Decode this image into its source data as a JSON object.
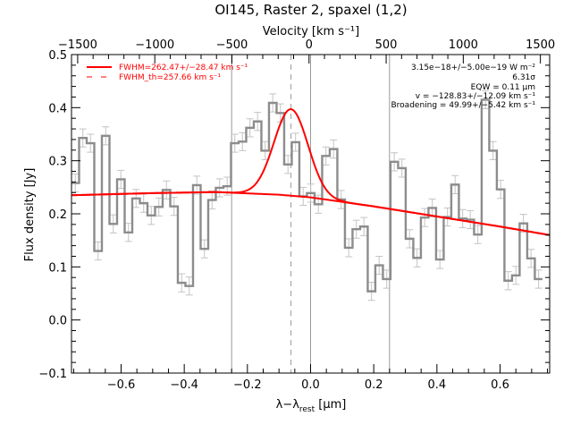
{
  "chart_data": {
    "type": "line",
    "title": "OI145, Raster 2, spaxel (1,2)",
    "xlabel": "λ−λ",
    "xlabel_sub": "rest",
    "xlabel_unit": " [μm]",
    "ylabel": "Flux density [Jy]",
    "top_axis_label": "Velocity [km s⁻¹]",
    "xlim": [
      -0.757,
      0.757
    ],
    "ylim": [
      -0.1,
      0.5
    ],
    "top_xlim": [
      -1540,
      1560
    ],
    "x_ticks": [
      -0.6,
      -0.4,
      -0.2,
      0.0,
      0.2,
      0.4,
      0.6
    ],
    "x_tick_labels": [
      "−0.6",
      "−0.4",
      "−0.2",
      "0.0",
      "0.2",
      "0.4",
      "0.6"
    ],
    "y_ticks": [
      -0.1,
      0.0,
      0.1,
      0.2,
      0.3,
      0.4,
      0.5
    ],
    "y_tick_labels": [
      "−0.1",
      "0.0",
      "0.1",
      "0.2",
      "0.3",
      "0.4",
      "0.5"
    ],
    "top_ticks": [
      -1500,
      -1000,
      -500,
      0,
      500,
      1000,
      1500
    ],
    "top_tick_labels": [
      "−1500",
      "−1000",
      "−500",
      "0",
      "500",
      "1000",
      "1500"
    ],
    "histogram": {
      "name": "observed spectrum",
      "bin_start": -0.757,
      "bin_width": 0.02405,
      "error": 0.017,
      "values": [
        0.258,
        0.343,
        0.333,
        0.13,
        0.347,
        0.181,
        0.265,
        0.165,
        0.229,
        0.22,
        0.197,
        0.213,
        0.245,
        0.214,
        0.07,
        0.064,
        0.254,
        0.134,
        0.226,
        0.249,
        0.252,
        0.333,
        0.336,
        0.362,
        0.374,
        0.319,
        0.409,
        0.39,
        0.293,
        0.335,
        0.233,
        0.239,
        0.218,
        0.309,
        0.322,
        0.227,
        0.136,
        0.171,
        0.176,
        0.054,
        0.103,
        0.077,
        0.298,
        0.286,
        0.153,
        0.117,
        0.193,
        0.211,
        0.114,
        0.194,
        0.255,
        0.191,
        0.189,
        0.161,
        0.415,
        0.319,
        0.246,
        0.074,
        0.084,
        0.182,
        0.116,
        0.077
      ]
    },
    "continuum": {
      "x": [
        -0.757,
        -0.5,
        -0.3,
        -0.1,
        0.0,
        0.2,
        0.4,
        0.6,
        0.757
      ],
      "y": [
        0.235,
        0.239,
        0.241,
        0.236,
        0.231,
        0.214,
        0.195,
        0.176,
        0.16
      ]
    },
    "gaussian": {
      "center": -0.062,
      "amplitude": 0.163,
      "sigma": 0.0536
    },
    "vertical_lines_solid": [
      -0.25,
      0.0,
      0.25
    ],
    "vertical_line_dashed": -0.062,
    "legend": [
      {
        "label": "FWHM=262.47+/−28.47 km s⁻¹",
        "style": "solid"
      },
      {
        "label": "FWHM_th=257.66 km s⁻¹",
        "style": "dashed"
      }
    ],
    "legend_position": "top-left",
    "annotations": [
      "3.15e−18+/−5.00e−19 W m⁻²",
      "6.31σ",
      "EQW = 0.11 μm",
      "v = −128.83+/−12.09 km s⁻¹",
      "Broadening = 49.99+/−5.42 km s⁻¹"
    ],
    "colors": {
      "data": "#8c8c8c",
      "errors": "#c4c4c4",
      "fit": "#ff0000",
      "guides": "#999999"
    }
  }
}
